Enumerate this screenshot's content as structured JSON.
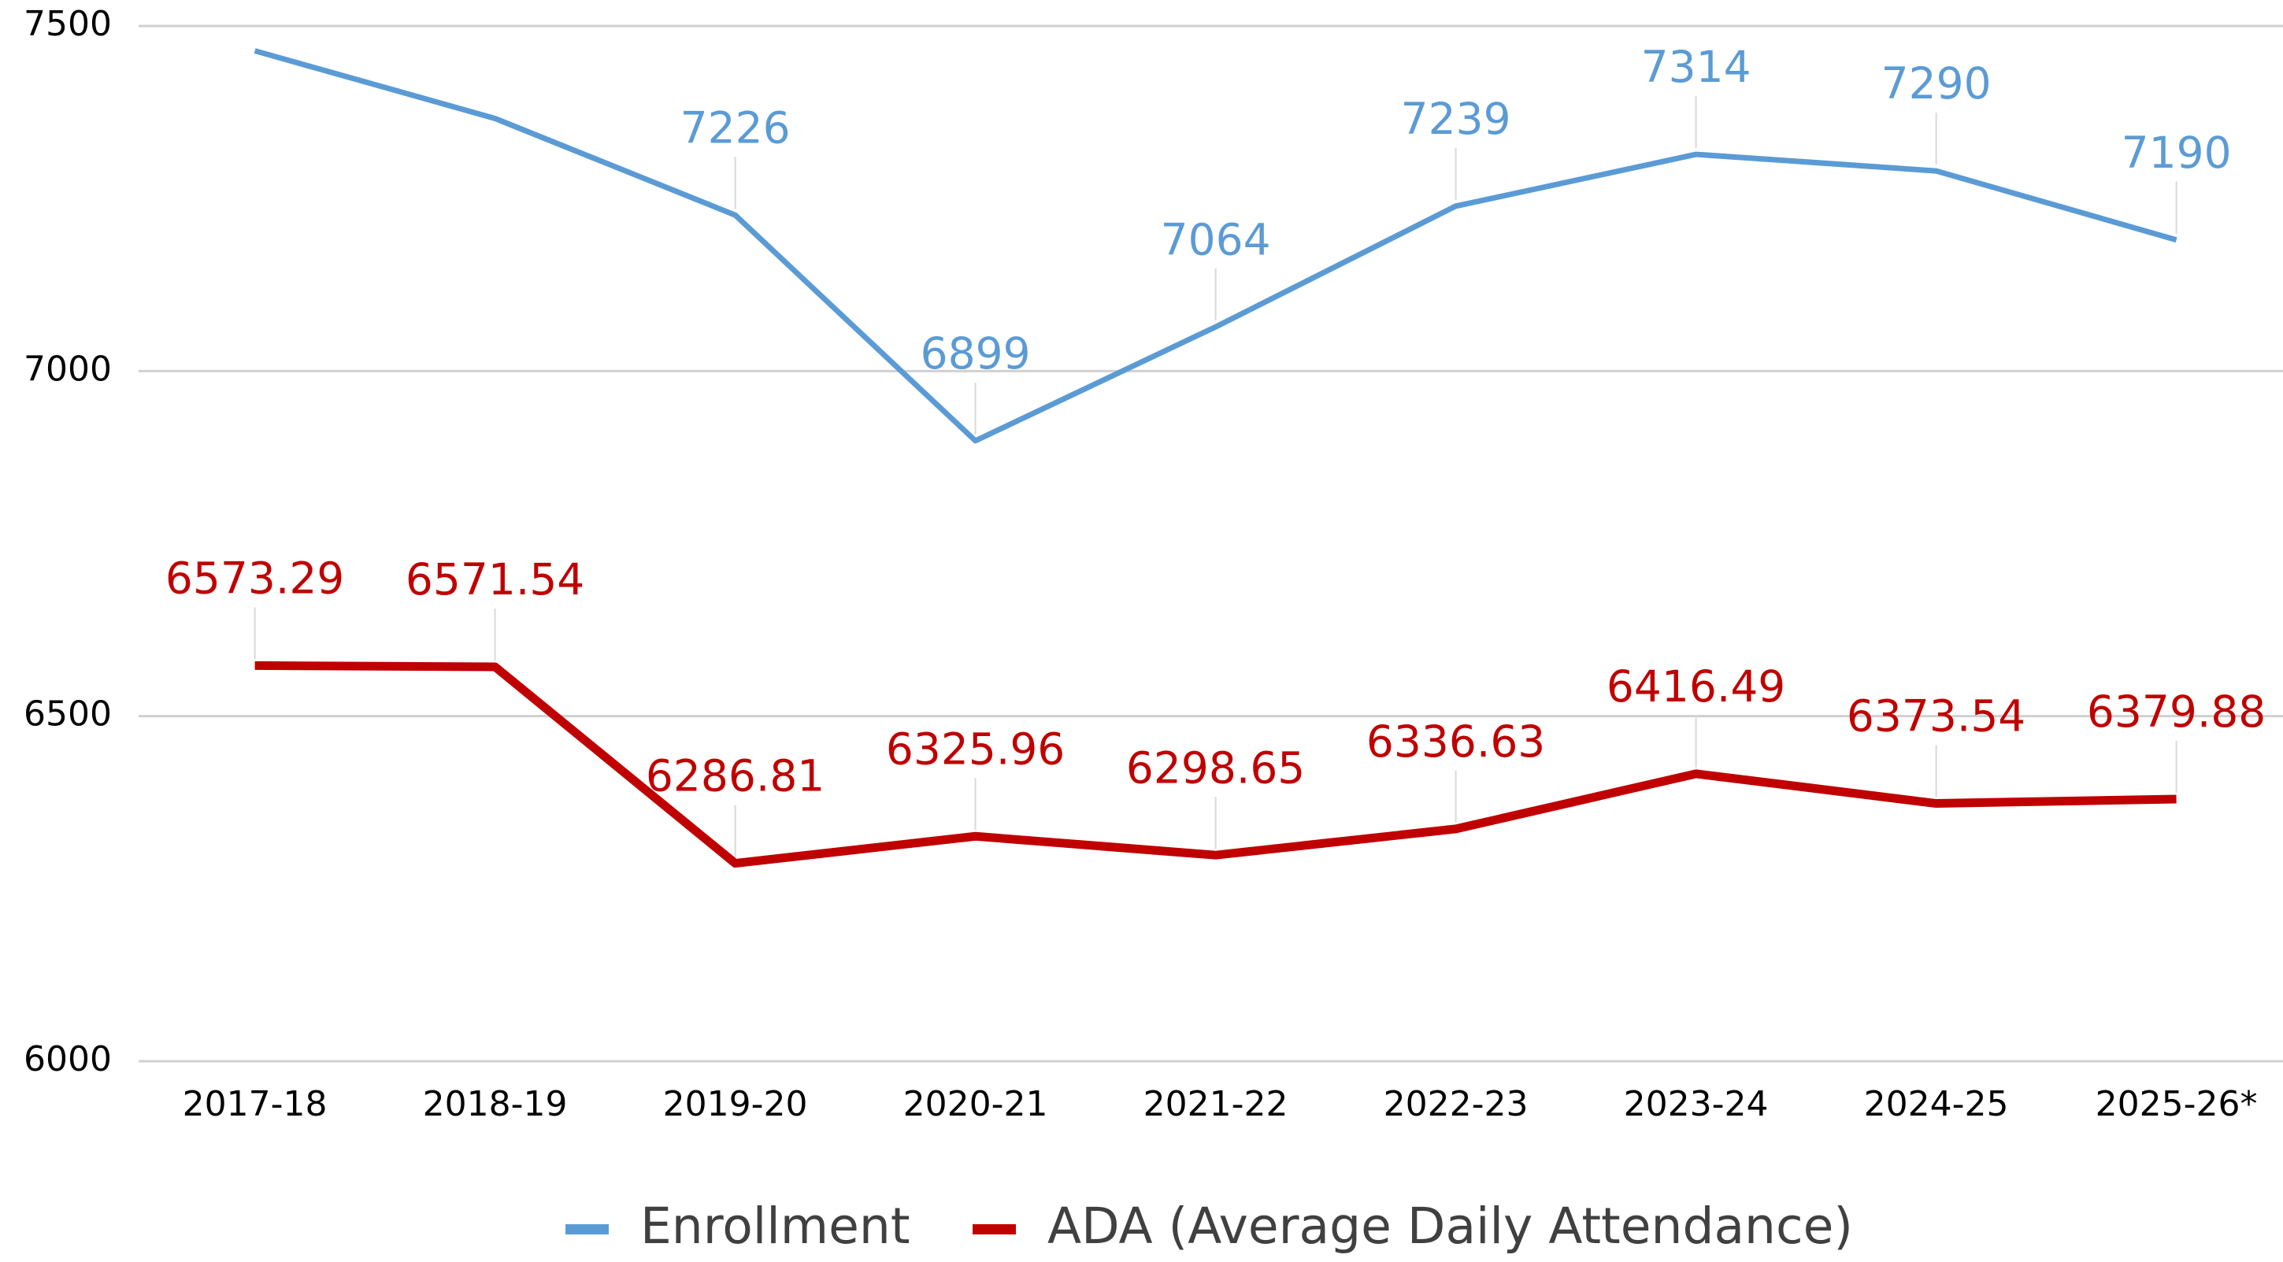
{
  "chart_data": {
    "type": "line",
    "categories": [
      "2017-18",
      "2018-19",
      "2019-20",
      "2020-21",
      "2021-22",
      "2022-23",
      "2023-24",
      "2024-25",
      "2025-26*"
    ],
    "series": [
      {
        "name": "Enrollment",
        "color": "#5b9bd5",
        "values": [
          7464,
          7366,
          7226,
          6899,
          7064,
          7239,
          7314,
          7290,
          7190
        ],
        "value_labels": [
          null,
          null,
          "7226",
          "6899",
          "7064",
          "7239",
          "7314",
          "7290",
          "7190"
        ]
      },
      {
        "name": "ADA (Average Daily Attendance)",
        "color": "#c00000",
        "values": [
          6573.29,
          6571.54,
          6286.81,
          6325.96,
          6298.65,
          6336.63,
          6416.49,
          6373.54,
          6379.88
        ]
      }
    ],
    "ylim": [
      6000,
      7500
    ],
    "yticks": [
      6000,
      6500,
      7000,
      7500
    ],
    "grid": true,
    "legend": "bottom"
  }
}
